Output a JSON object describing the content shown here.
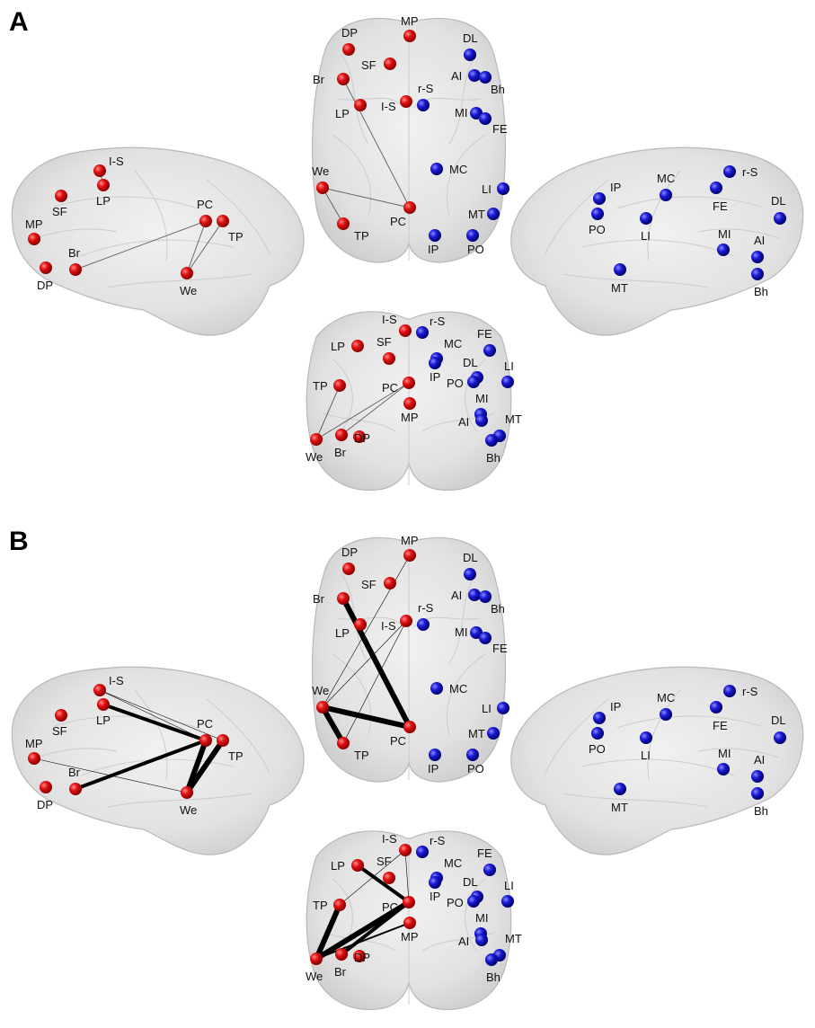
{
  "panels": [
    {
      "letter": "A",
      "edges": [
        {
          "view": "left",
          "a": "Br",
          "b": "PC",
          "w": 1
        },
        {
          "view": "left",
          "a": "PC",
          "b": "We",
          "w": 1
        },
        {
          "view": "left",
          "a": "TP",
          "b": "We",
          "w": 1
        },
        {
          "view": "left",
          "a": "I-S",
          "b": "LP",
          "w": 1
        },
        {
          "view": "top",
          "a": "Br",
          "b": "PC",
          "w": 1
        },
        {
          "view": "top",
          "a": "We",
          "b": "PC",
          "w": 1
        },
        {
          "view": "top",
          "a": "We",
          "b": "TP",
          "w": 1
        },
        {
          "view": "front",
          "a": "We",
          "b": "TP",
          "w": 1
        },
        {
          "view": "front",
          "a": "We",
          "b": "PC",
          "w": 1
        },
        {
          "view": "front",
          "a": "Br",
          "b": "PC",
          "w": 1
        }
      ]
    },
    {
      "letter": "B",
      "edges": [
        {
          "view": "left",
          "a": "I-S",
          "b": "PC",
          "w": 0.6
        },
        {
          "view": "left",
          "a": "LP",
          "b": "PC",
          "w": 4
        },
        {
          "view": "left",
          "a": "Br",
          "b": "PC",
          "w": 4
        },
        {
          "view": "left",
          "a": "PC",
          "b": "We",
          "w": 6
        },
        {
          "view": "left",
          "a": "TP",
          "b": "We",
          "w": 6
        },
        {
          "view": "left",
          "a": "MP",
          "b": "We",
          "w": 0.6
        },
        {
          "view": "left",
          "a": "I-S",
          "b": "TP",
          "w": 0.6
        },
        {
          "view": "top",
          "a": "Br",
          "b": "PC",
          "w": 6
        },
        {
          "view": "top",
          "a": "We",
          "b": "PC",
          "w": 6
        },
        {
          "view": "top",
          "a": "We",
          "b": "TP",
          "w": 6
        },
        {
          "view": "top",
          "a": "We",
          "b": "MP",
          "w": 0.6
        },
        {
          "view": "top",
          "a": "We",
          "b": "I-S",
          "w": 0.6
        },
        {
          "view": "top",
          "a": "TP",
          "b": "I-S",
          "w": 0.6
        },
        {
          "view": "front",
          "a": "We",
          "b": "TP",
          "w": 6
        },
        {
          "view": "front",
          "a": "We",
          "b": "PC",
          "w": 6
        },
        {
          "view": "front",
          "a": "Br",
          "b": "PC",
          "w": 4
        },
        {
          "view": "front",
          "a": "LP",
          "b": "PC",
          "w": 4
        },
        {
          "view": "front",
          "a": "We",
          "b": "MP",
          "w": 2
        },
        {
          "view": "front",
          "a": "TP",
          "b": "I-S",
          "w": 0.6
        },
        {
          "view": "front",
          "a": "I-S",
          "b": "PC",
          "w": 0.6
        }
      ]
    }
  ],
  "left_hemisphere_nodes": [
    "I-S",
    "LP",
    "SF",
    "MP",
    "Br",
    "DP",
    "PC",
    "TP",
    "We"
  ],
  "right_hemisphere_nodes": [
    "r-S",
    "IP",
    "PO",
    "MC",
    "FE",
    "LI",
    "DL",
    "MI",
    "AI",
    "Bh",
    "MT"
  ],
  "colors": {
    "left_nodes": "#e01010",
    "right_nodes": "#1a1ad6",
    "edges": "#000000",
    "brain": "#e4e4e4"
  }
}
